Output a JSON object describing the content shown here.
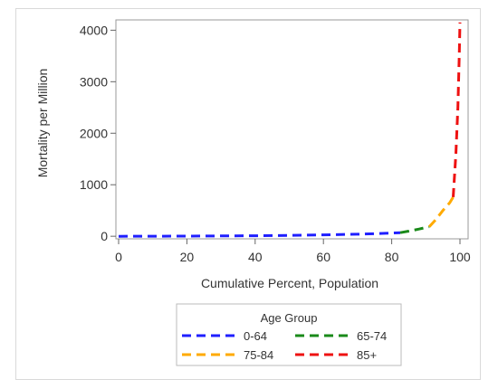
{
  "chart_data": {
    "type": "line",
    "title": "",
    "xlabel": "Cumulative Percent, Population",
    "ylabel": "Mortality per Million",
    "xlim": [
      0,
      100
    ],
    "ylim": [
      -50,
      4200
    ],
    "x_ticks": [
      0,
      20,
      40,
      60,
      80,
      100
    ],
    "y_ticks": [
      0,
      1000,
      2000,
      3000,
      4000
    ],
    "grid": false,
    "legend": {
      "title": "Age Group",
      "placement": "bottom"
    },
    "series": [
      {
        "name": "0-64",
        "color": "#1f1fff",
        "x": [
          0,
          10,
          20,
          30,
          40,
          50,
          60,
          70,
          75,
          80,
          82.5
        ],
        "y": [
          0,
          1,
          3,
          6,
          10,
          17,
          27,
          40,
          50,
          62,
          70
        ]
      },
      {
        "name": "65-74",
        "color": "#1a8a1a",
        "x": [
          82.5,
          85,
          88,
          91
        ],
        "y": [
          70,
          100,
          140,
          185
        ]
      },
      {
        "name": "75-84",
        "color": "#ffaa00",
        "x": [
          91,
          93,
          95,
          97,
          98
        ],
        "y": [
          185,
          330,
          500,
          650,
          760
        ]
      },
      {
        "name": "85+",
        "color": "#ee1111",
        "x": [
          98,
          98.8,
          99.4,
          99.8,
          100
        ],
        "y": [
          760,
          1600,
          2500,
          3500,
          4150
        ]
      }
    ]
  }
}
